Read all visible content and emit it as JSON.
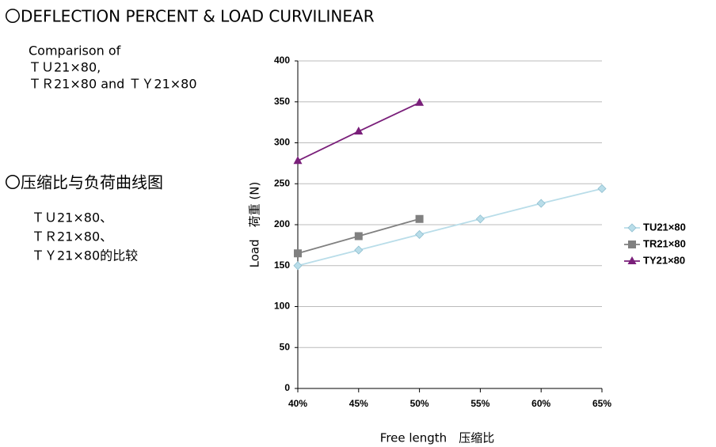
{
  "heading": "〇DEFLECTION PERCENT & LOAD CURVILINEAR",
  "english_note": {
    "lines": [
      "Comparison of",
      "ＴＵ21×80,",
      "ＴＲ21×80 and ＴＹ21×80"
    ]
  },
  "chinese_heading": "〇压缩比与负荷曲线图",
  "chinese_note": {
    "lines": [
      "ＴＵ21×80、",
      "ＴＲ21×80、",
      "ＴＹ21×80的比较"
    ]
  },
  "chart_data": {
    "type": "line",
    "x_label": "Free length　压缩比",
    "y_label": "Load　荷重 (N)",
    "x": [
      40,
      45,
      50,
      55,
      60,
      65
    ],
    "xlim": [
      40,
      65
    ],
    "xticks": [
      {
        "value": 40,
        "label": "40%"
      },
      {
        "value": 45,
        "label": "45%"
      },
      {
        "value": 50,
        "label": "50%"
      },
      {
        "value": 55,
        "label": "55%"
      },
      {
        "value": 60,
        "label": "60%"
      },
      {
        "value": 65,
        "label": "65%"
      }
    ],
    "ylim": [
      0,
      400
    ],
    "yticks": [
      0,
      50,
      100,
      150,
      200,
      250,
      300,
      350,
      400
    ],
    "grid": true,
    "legend": "right",
    "series": [
      {
        "name": "TU21×80",
        "color": "#b9dde9",
        "marker": "diamond",
        "values": [
          150,
          169,
          188,
          207,
          226,
          244
        ]
      },
      {
        "name": "TR21×80",
        "color": "#808080",
        "marker": "square",
        "values": [
          165,
          186,
          207,
          null,
          null,
          null
        ]
      },
      {
        "name": "TY21×80",
        "color": "#7a1f7a",
        "marker": "triangle",
        "values": [
          278,
          314,
          349,
          null,
          null,
          null
        ]
      }
    ]
  }
}
